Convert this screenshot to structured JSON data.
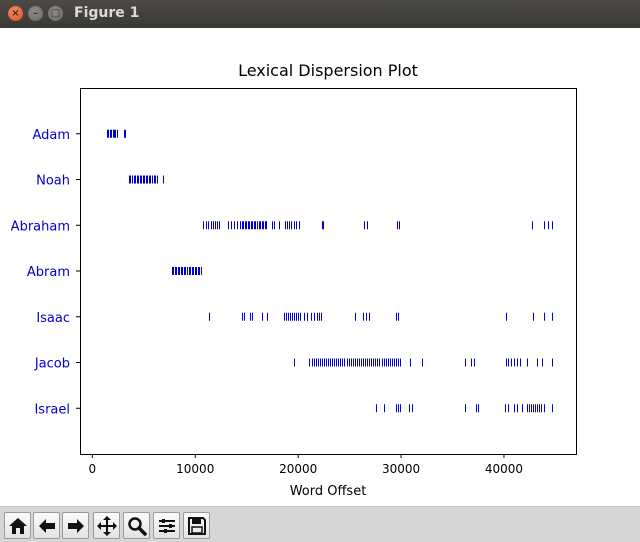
{
  "window": {
    "title": "Figure 1",
    "close_glyph": "×",
    "min_glyph": "–",
    "max_glyph": "□"
  },
  "toolbar": {
    "buttons": [
      {
        "name": "home-icon"
      },
      {
        "name": "back-arrow-icon"
      },
      {
        "name": "forward-arrow-icon"
      },
      {
        "name": "pan-icon"
      },
      {
        "name": "zoom-icon"
      },
      {
        "name": "configure-subplots-icon"
      },
      {
        "name": "save-icon"
      }
    ]
  },
  "colors": {
    "marker": "#0000cc",
    "ytick": "#0000cc"
  },
  "chart_data": {
    "type": "scatter",
    "title": "Lexical Dispersion Plot",
    "xlabel": "Word Offset",
    "ylabel": "",
    "xlim": [
      -1200,
      47000
    ],
    "xticks": [
      0,
      10000,
      20000,
      30000,
      40000
    ],
    "xtick_labels": [
      "0",
      "10000",
      "20000",
      "30000",
      "40000"
    ],
    "categories": [
      "Adam",
      "Noah",
      "Abraham",
      "Abram",
      "Isaac",
      "Jacob",
      "Israel"
    ],
    "marker": "|",
    "grid": false,
    "series": [
      {
        "name": "Adam",
        "x": [
          1400,
          1550,
          1700,
          1850,
          2000,
          2100,
          2200,
          2350,
          3050,
          3150
        ]
      },
      {
        "name": "Noah",
        "x": [
          3600,
          3700,
          3850,
          4000,
          4150,
          4300,
          4450,
          4600,
          4750,
          4900,
          5050,
          5200,
          5350,
          5500,
          5650,
          5800,
          5950,
          6100,
          6300,
          6900
        ]
      },
      {
        "name": "Abraham",
        "x": [
          10800,
          11000,
          11200,
          11500,
          11750,
          11900,
          12100,
          12300,
          13200,
          13500,
          13800,
          14100,
          14300,
          14500,
          14650,
          14800,
          14950,
          15100,
          15250,
          15400,
          15550,
          15700,
          15850,
          16000,
          16150,
          16300,
          16450,
          16600,
          16750,
          16900,
          17500,
          17700,
          18100,
          18700,
          18900,
          19100,
          19300,
          19600,
          19800,
          20100,
          22300,
          22450,
          26400,
          26700,
          29600,
          29800,
          42700,
          43900,
          44300,
          44700
        ]
      },
      {
        "name": "Abram",
        "x": [
          7700,
          7850,
          8000,
          8150,
          8300,
          8450,
          8600,
          8750,
          8900,
          9050,
          9200,
          9350,
          9500,
          9650,
          9800,
          9950,
          10100,
          10250,
          10400,
          10550
        ]
      },
      {
        "name": "Isaac",
        "x": [
          11300,
          14500,
          14700,
          15300,
          15500,
          16500,
          17000,
          18600,
          18800,
          19000,
          19200,
          19400,
          19600,
          19800,
          20000,
          20200,
          20600,
          20900,
          21200,
          21500,
          21800,
          22000,
          22200,
          25500,
          26300,
          26600,
          26900,
          29500,
          29700,
          40200,
          42800,
          43900,
          44700
        ]
      },
      {
        "name": "Jacob",
        "x": [
          19600,
          21100,
          21300,
          21500,
          21700,
          21900,
          22100,
          22300,
          22500,
          22700,
          22900,
          23100,
          23300,
          23500,
          23700,
          23900,
          24100,
          24300,
          24500,
          24700,
          24900,
          25100,
          25300,
          25500,
          25700,
          25900,
          26100,
          26300,
          26500,
          26700,
          26900,
          27100,
          27300,
          27500,
          27700,
          27900,
          28100,
          28300,
          28500,
          28700,
          28900,
          29100,
          29300,
          29500,
          29700,
          29900,
          30900,
          32000,
          36200,
          36800,
          37100,
          40200,
          40400,
          40700,
          41000,
          41300,
          41600,
          42200,
          43200,
          43700,
          44700
        ]
      },
      {
        "name": "Israel",
        "x": [
          27600,
          28300,
          29500,
          29700,
          29900,
          30800,
          31100,
          36200,
          37300,
          37500,
          40100,
          40400,
          41000,
          41300,
          41800,
          42200,
          42400,
          42600,
          42800,
          43000,
          43200,
          43400,
          43600,
          43900,
          44700
        ]
      }
    ]
  }
}
